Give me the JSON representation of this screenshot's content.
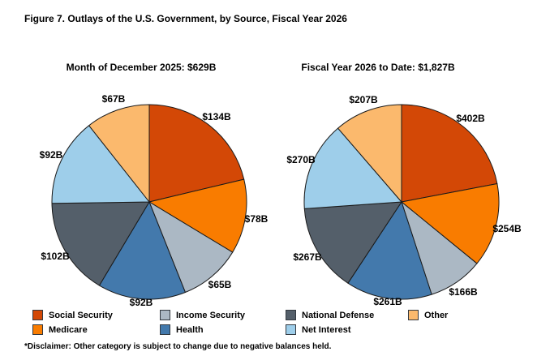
{
  "page": {
    "title": "Figure 7. Outlays of the U.S. Government, by Source, Fiscal Year 2026",
    "footnote": "*Disclaimer: Other category is subject to change due to negative balances held.",
    "background_color": "#FFFFFF",
    "text_color": "#000000",
    "slice_outline_color": "#1A1A1A"
  },
  "categories": [
    {
      "name": "Social Security",
      "color": "#D34806"
    },
    {
      "name": "Medicare",
      "color": "#F97C00"
    },
    {
      "name": "Income Security",
      "color": "#ABB8C4"
    },
    {
      "name": "Health",
      "color": "#4379AC"
    },
    {
      "name": "National Defense",
      "color": "#545F6A"
    },
    {
      "name": "Net Interest",
      "color": "#9ECEEA"
    },
    {
      "name": "Other",
      "color": "#FBB96D"
    }
  ],
  "chart_data": [
    {
      "type": "pie",
      "title": "Month of December 2025: $629B",
      "total": 629,
      "total_label": "$629B",
      "categories": [
        "Social Security",
        "Medicare",
        "Income Security",
        "Health",
        "National Defense",
        "Net Interest",
        "Other"
      ],
      "values": [
        134,
        78,
        65,
        92,
        102,
        92,
        67
      ],
      "data_labels": [
        "$134B",
        "$78B",
        "$65B",
        "$92B",
        "$102B",
        "$92B",
        "$67B"
      ],
      "start_angle_deg": 0,
      "direction": "clockwise",
      "grid": false,
      "legend_position": "bottom"
    },
    {
      "type": "pie",
      "title": "Fiscal Year 2026 to Date: $1,827B",
      "total": 1827,
      "total_label": "$1,827B",
      "categories": [
        "Social Security",
        "Medicare",
        "Income Security",
        "Health",
        "National Defense",
        "Net Interest",
        "Other"
      ],
      "values": [
        402,
        254,
        166,
        261,
        267,
        270,
        207
      ],
      "data_labels": [
        "$402B",
        "$254B",
        "$166B",
        "$261B",
        "$267B",
        "$270B",
        "$207B"
      ],
      "start_angle_deg": 0,
      "direction": "clockwise",
      "grid": false,
      "legend_position": "bottom"
    }
  ],
  "legend": {
    "columns": [
      [
        "Social Security",
        "Medicare"
      ],
      [
        "Income Security",
        "Health"
      ],
      [
        "National Defense",
        "Net Interest"
      ],
      [
        "Other"
      ]
    ]
  }
}
